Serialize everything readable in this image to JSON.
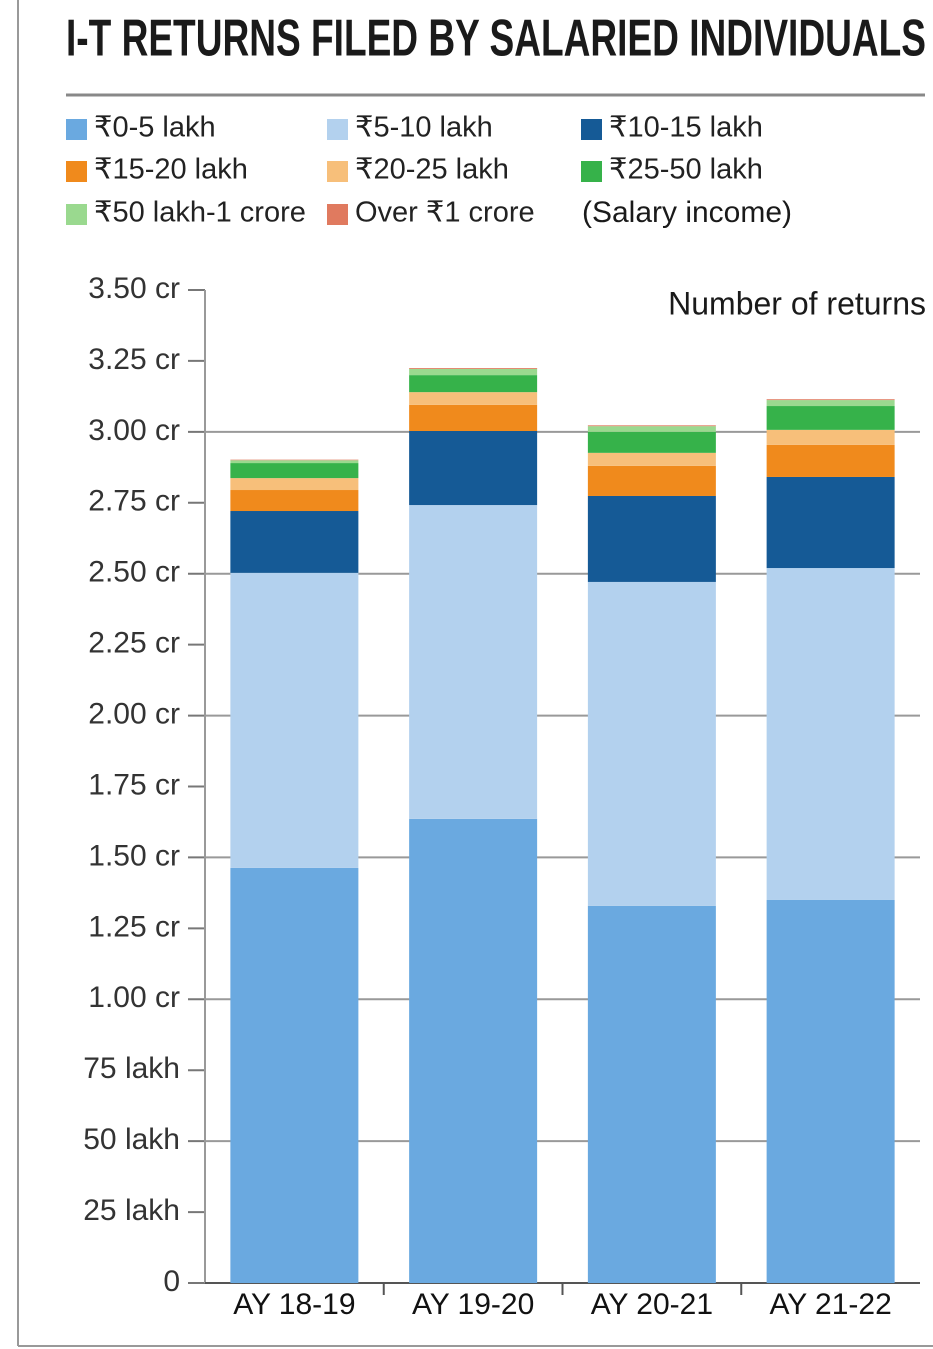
{
  "chart_data": {
    "type": "stacked_bar",
    "title": "I-T RETURNS FILED BY SALARIED INDIVIDUALS",
    "note": "(Salary income)",
    "y_label": "Number of returns",
    "categories": [
      "AY 18-19",
      "AY 19-20",
      "AY 20-21",
      "AY 21-22"
    ],
    "series": [
      {
        "name": "₹0-5 lakh",
        "color": "#6aa9e0",
        "values": [
          146.3,
          163.6,
          132.9,
          135.0
        ]
      },
      {
        "name": "₹5-10 lakh",
        "color": "#b3d1ee",
        "values": [
          104.0,
          110.6,
          114.2,
          117.0
        ]
      },
      {
        "name": "₹10-15 lakh",
        "color": "#155a96",
        "values": [
          21.8,
          26.1,
          30.3,
          32.1
        ]
      },
      {
        "name": "₹15-20 lakh",
        "color": "#f08a1c",
        "values": [
          7.4,
          9.2,
          10.6,
          11.3
        ]
      },
      {
        "name": "₹20-25 lakh",
        "color": "#f7bf7a",
        "values": [
          4.2,
          4.5,
          4.6,
          5.3
        ]
      },
      {
        "name": "₹25-50 lakh",
        "color": "#36b24a",
        "values": [
          5.3,
          6.0,
          7.4,
          8.4
        ]
      },
      {
        "name": "₹50 lakh-1 crore",
        "color": "#9ad98f",
        "values": [
          1.0,
          2.2,
          2.0,
          2.1
        ]
      },
      {
        "name": "Over ₹1 crore",
        "color": "#e07a5f",
        "values": [
          0.2,
          0.3,
          0.3,
          0.3
        ]
      }
    ],
    "ylim": [
      0,
      350
    ],
    "yticks": [
      0,
      {
        "value": 25,
        "label": "25 lakh"
      },
      {
        "value": 50,
        "label": "50 lakh"
      },
      {
        "value": 75,
        "label": "75 lakh"
      },
      {
        "value": 100,
        "label": "1.00 cr"
      },
      {
        "value": 125,
        "label": "1.25 cr"
      },
      {
        "value": 150,
        "label": "1.50 cr"
      },
      {
        "value": 175,
        "label": "1.75 cr"
      },
      {
        "value": 200,
        "label": "2.00 cr"
      },
      {
        "value": 225,
        "label": "2.25 cr"
      },
      {
        "value": 250,
        "label": "2.50 cr"
      },
      {
        "value": 275,
        "label": "2.75 cr"
      },
      {
        "value": 300,
        "label": "3.00 cr"
      },
      {
        "value": 325,
        "label": "3.25 cr"
      },
      {
        "value": 350,
        "label": "3.50 cr"
      }
    ],
    "grid": true
  }
}
